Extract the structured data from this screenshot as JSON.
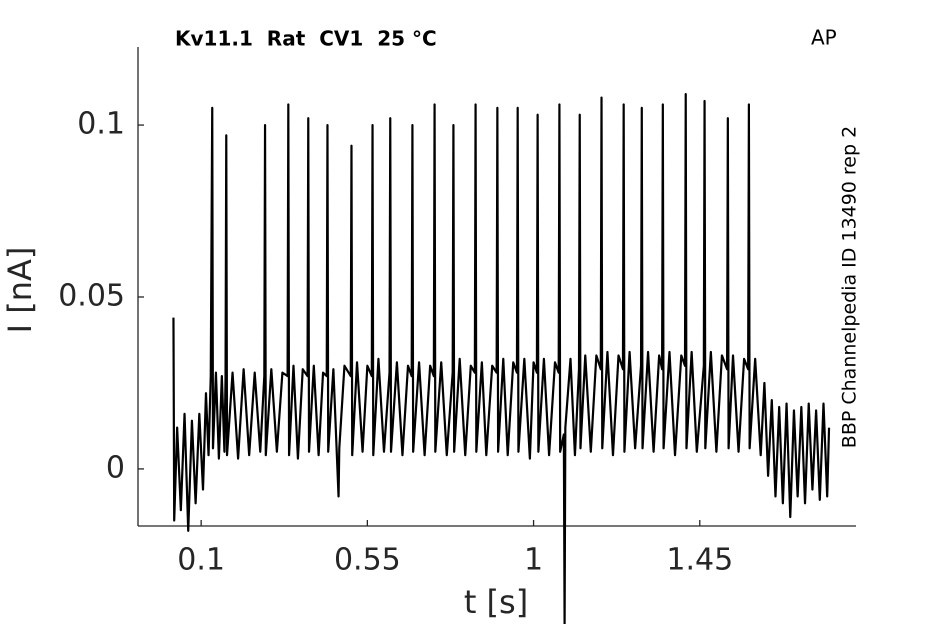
{
  "chart_data": {
    "type": "line",
    "title": "Kv11.1  Rat  CV1  25 °C",
    "annotation": "AP",
    "side_label": "BBP Channelpedia ID 13490 rep 2",
    "xlabel": "t [s]",
    "ylabel": "I [nA]",
    "color": "#000000",
    "xlim": [
      -0.071,
      1.873
    ],
    "xticks": [
      0.1,
      0.55,
      1,
      1.45
    ],
    "ylim": [
      -0.0166,
      0.1227
    ],
    "yticks": [
      0,
      0.05,
      0.1
    ],
    "grid": false,
    "x": [
      0.025,
      0.027,
      0.035,
      0.045,
      0.055,
      0.065,
      0.075,
      0.085,
      0.095,
      0.105,
      0.113,
      0.12,
      0.126,
      0.13,
      0.132,
      0.14,
      0.148,
      0.156,
      0.163,
      0.166,
      0.168,
      0.17,
      0.185,
      0.2,
      0.215,
      0.23,
      0.245,
      0.26,
      0.271,
      0.273,
      0.275,
      0.29,
      0.305,
      0.32,
      0.334,
      0.336,
      0.338,
      0.35,
      0.362,
      0.375,
      0.388,
      0.39,
      0.392,
      0.405,
      0.418,
      0.43,
      0.44,
      0.442,
      0.444,
      0.458,
      0.472,
      0.474,
      0.488,
      0.505,
      0.507,
      0.509,
      0.522,
      0.537,
      0.55,
      0.562,
      0.564,
      0.566,
      0.58,
      0.595,
      0.61,
      0.612,
      0.614,
      0.63,
      0.645,
      0.66,
      0.67,
      0.672,
      0.674,
      0.69,
      0.705,
      0.72,
      0.73,
      0.732,
      0.734,
      0.75,
      0.765,
      0.781,
      0.783,
      0.785,
      0.8,
      0.815,
      0.83,
      0.841,
      0.843,
      0.845,
      0.86,
      0.872,
      0.888,
      0.9,
      0.902,
      0.904,
      0.918,
      0.93,
      0.945,
      0.955,
      0.957,
      0.959,
      0.975,
      0.99,
      1.0,
      1.009,
      1.011,
      1.013,
      1.028,
      1.042,
      1.058,
      1.068,
      1.07,
      1.072,
      1.082,
      1.084,
      1.086,
      1.1,
      1.112,
      1.123,
      1.125,
      1.127,
      1.14,
      1.155,
      1.17,
      1.182,
      1.184,
      1.186,
      1.2,
      1.215,
      1.23,
      1.242,
      1.244,
      1.246,
      1.26,
      1.275,
      1.291,
      1.293,
      1.295,
      1.31,
      1.325,
      1.34,
      1.348,
      1.35,
      1.352,
      1.368,
      1.383,
      1.4,
      1.41,
      1.412,
      1.414,
      1.428,
      1.442,
      1.461,
      1.463,
      1.465,
      1.48,
      1.495,
      1.51,
      1.524,
      1.526,
      1.528,
      1.54,
      1.555,
      1.57,
      1.581,
      1.583,
      1.585,
      1.6,
      1.615,
      1.625,
      1.635,
      1.645,
      1.655,
      1.665,
      1.675,
      1.685,
      1.695,
      1.705,
      1.715,
      1.725,
      1.735,
      1.745,
      1.755,
      1.765,
      1.775,
      1.785,
      1.795,
      1.8
    ],
    "values": [
      0.044,
      -0.015,
      0.012,
      -0.012,
      0.016,
      -0.018,
      0.014,
      -0.01,
      0.016,
      -0.006,
      0.022,
      0.004,
      0.027,
      0.105,
      0.006,
      0.028,
      0.003,
      0.027,
      0.005,
      0.026,
      0.097,
      0.004,
      0.028,
      0.003,
      0.029,
      0.004,
      0.028,
      0.005,
      0.027,
      0.1,
      0.004,
      0.029,
      0.005,
      0.028,
      0.027,
      0.106,
      0.004,
      0.03,
      0.003,
      0.029,
      0.027,
      0.102,
      0.005,
      0.03,
      0.004,
      0.028,
      0.027,
      0.1,
      0.005,
      0.029,
      -0.008,
      0.006,
      0.03,
      0.027,
      0.094,
      0.004,
      0.031,
      0.005,
      0.03,
      0.027,
      0.1,
      0.004,
      0.032,
      0.005,
      0.028,
      0.102,
      0.005,
      0.031,
      0.004,
      0.03,
      0.027,
      0.1,
      0.005,
      0.031,
      0.004,
      0.03,
      0.027,
      0.106,
      0.005,
      0.031,
      0.004,
      0.028,
      0.1,
      0.005,
      0.032,
      0.004,
      0.03,
      0.028,
      0.106,
      0.005,
      0.031,
      0.004,
      0.03,
      0.028,
      0.105,
      0.005,
      0.032,
      0.004,
      0.031,
      0.028,
      0.105,
      0.005,
      0.032,
      0.003,
      0.031,
      0.028,
      0.103,
      0.005,
      0.032,
      0.004,
      0.031,
      0.028,
      0.106,
      0.005,
      0.01,
      -0.045,
      0.012,
      0.032,
      0.004,
      0.029,
      0.103,
      0.006,
      0.033,
      0.005,
      0.033,
      0.029,
      0.108,
      0.006,
      0.034,
      0.004,
      0.033,
      0.029,
      0.106,
      0.005,
      0.034,
      0.006,
      0.03,
      0.105,
      0.006,
      0.034,
      0.005,
      0.033,
      0.029,
      0.106,
      0.006,
      0.034,
      0.004,
      0.033,
      0.03,
      0.109,
      0.006,
      0.034,
      0.005,
      0.03,
      0.107,
      0.006,
      0.034,
      0.005,
      0.033,
      0.029,
      0.102,
      0.006,
      0.033,
      0.005,
      0.032,
      0.029,
      0.106,
      0.006,
      0.032,
      0.004,
      0.025,
      -0.002,
      0.02,
      -0.008,
      0.018,
      -0.01,
      0.019,
      -0.014,
      0.017,
      -0.008,
      0.018,
      -0.01,
      0.019,
      -0.006,
      0.017,
      -0.009,
      0.019,
      -0.008,
      0.012
    ]
  }
}
